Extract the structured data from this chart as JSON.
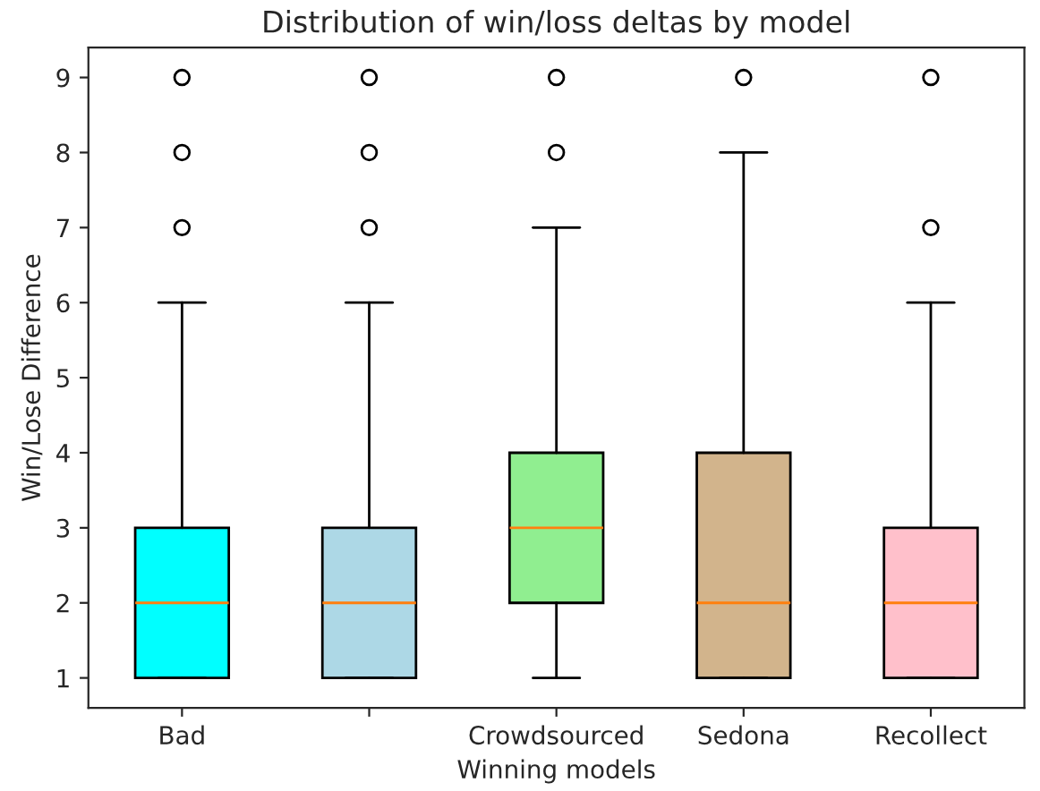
{
  "chart_data": {
    "type": "box",
    "title": "Distribution of win/loss deltas by model",
    "xlabel": "Winning models",
    "ylabel": "Win/Lose Difference",
    "categories": [
      "Bad",
      null,
      "Crowdsourced",
      "Sedona",
      "Recollect"
    ],
    "colors": [
      "#00ffff",
      "#add8e6",
      "#90ee90",
      "#d2b48c",
      "#ffc0cb"
    ],
    "boxes": [
      {
        "low": 1,
        "q1": 1,
        "median": 2,
        "q3": 3,
        "high": 6,
        "outliers": [
          7,
          8,
          9
        ]
      },
      {
        "low": 1,
        "q1": 1,
        "median": 2,
        "q3": 3,
        "high": 6,
        "outliers": [
          7,
          8,
          9
        ]
      },
      {
        "low": 1,
        "q1": 2,
        "median": 3,
        "q3": 4,
        "high": 7,
        "outliers": [
          8,
          9
        ]
      },
      {
        "low": 1,
        "q1": 1,
        "median": 2,
        "q3": 4,
        "high": 8,
        "outliers": [
          9
        ]
      },
      {
        "low": 1,
        "q1": 1,
        "median": 2,
        "q3": 3,
        "high": 6,
        "outliers": [
          7,
          9
        ]
      }
    ],
    "ylim": [
      0.6,
      9.4
    ],
    "yticks": [
      1,
      2,
      3,
      4,
      5,
      6,
      7,
      8,
      9
    ],
    "grid": false,
    "legend": false
  }
}
